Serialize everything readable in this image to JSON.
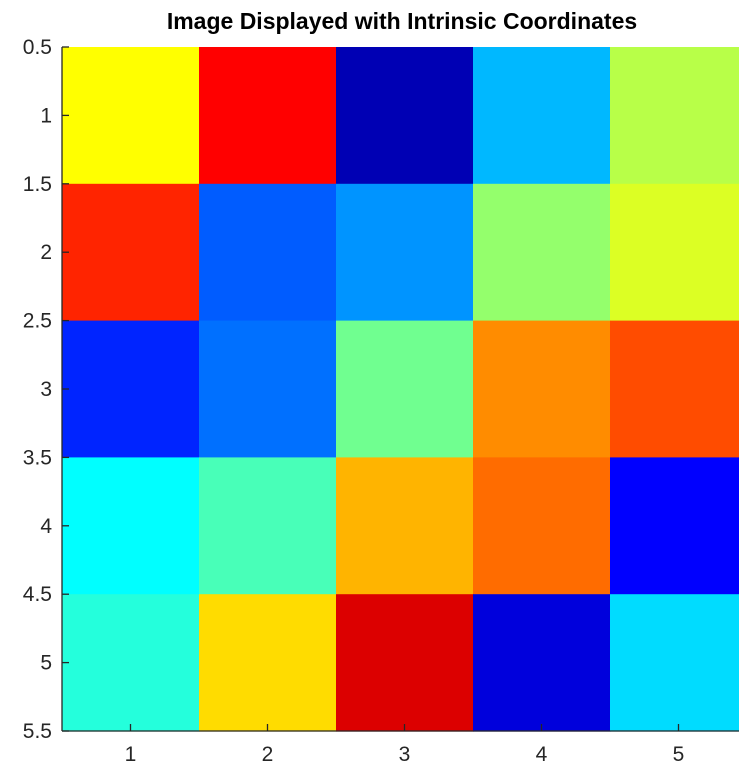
{
  "chart_data": {
    "type": "heatmap",
    "title": "Image Displayed with Intrinsic Coordinates",
    "xlabel": "",
    "ylabel": "",
    "columns": [
      1,
      2,
      3,
      4,
      5
    ],
    "rows": [
      1,
      2,
      3,
      4,
      5
    ],
    "xlim": [
      0.5,
      5.5
    ],
    "ylim": [
      0.5,
      5.5
    ],
    "y_direction": "reverse",
    "colormap": "jet",
    "x_ticks": [
      "1",
      "2",
      "3",
      "4",
      "5"
    ],
    "y_ticks": [
      "0.5",
      "1",
      "1.5",
      "2",
      "2.5",
      "3",
      "3.5",
      "4",
      "4.5",
      "5",
      "5.5"
    ],
    "cells": [
      [
        "#ffff00",
        "#ff0000",
        "#0000b4",
        "#00b8ff",
        "#b8ff48"
      ],
      [
        "#ff2400",
        "#005cff",
        "#0094ff",
        "#94ff6c",
        "#dcff24"
      ],
      [
        "#0024ff",
        "#0070ff",
        "#70ff90",
        "#ff8c00",
        "#ff4c00"
      ],
      [
        "#00ffff",
        "#48ffb8",
        "#ffb400",
        "#ff6c00",
        "#0000ff"
      ],
      [
        "#24ffdc",
        "#ffdc00",
        "#dc0000",
        "#0000dc",
        "#00dcff"
      ]
    ],
    "grid": false
  }
}
